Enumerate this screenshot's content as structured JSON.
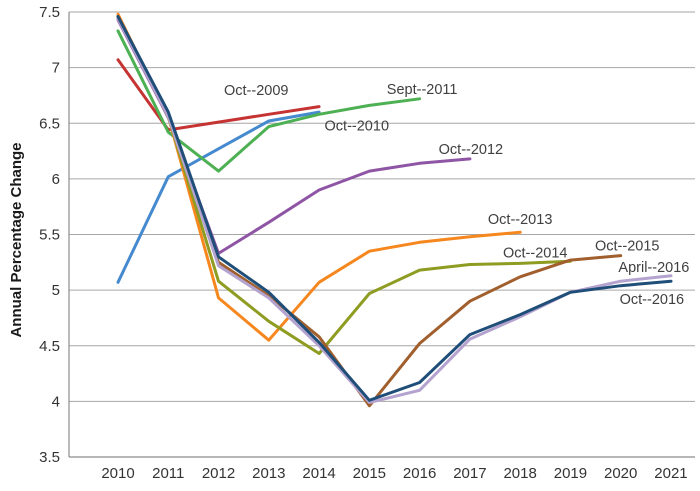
{
  "chart_data": {
    "type": "line",
    "title": "",
    "xlabel": "",
    "ylabel": "Annual Percentage Change",
    "ylim": [
      3.5,
      7.5
    ],
    "xlim": [
      2010,
      2021
    ],
    "grid": "horizontal",
    "legend_position": "none (inline annotations)",
    "gridline_color": "#A6A6A6",
    "axis_color": "#8C8C8C",
    "tick_label_color": "#333333",
    "annotation_color": "#404040",
    "y_ticks": [
      {
        "value": 3.5,
        "label": "3.5"
      },
      {
        "value": 4.0,
        "label": "4"
      },
      {
        "value": 4.5,
        "label": "4.5"
      },
      {
        "value": 5.0,
        "label": "5"
      },
      {
        "value": 5.5,
        "label": "5.5"
      },
      {
        "value": 6.0,
        "label": "6"
      },
      {
        "value": 6.5,
        "label": "6.5"
      },
      {
        "value": 7.0,
        "label": "7"
      },
      {
        "value": 7.5,
        "label": "7.5"
      }
    ],
    "x_ticks": [
      {
        "value": 2010,
        "label": "2010"
      },
      {
        "value": 2011,
        "label": "2011"
      },
      {
        "value": 2012,
        "label": "2012"
      },
      {
        "value": 2013,
        "label": "2013"
      },
      {
        "value": 2014,
        "label": "2014"
      },
      {
        "value": 2015,
        "label": "2015"
      },
      {
        "value": 2016,
        "label": "2016"
      },
      {
        "value": 2017,
        "label": "2017"
      },
      {
        "value": 2018,
        "label": "2018"
      },
      {
        "value": 2019,
        "label": "2019"
      },
      {
        "value": 2020,
        "label": "2020"
      },
      {
        "value": 2021,
        "label": "2021"
      }
    ],
    "series": [
      {
        "name": "Oct--2009",
        "color": "#C63333",
        "years": [
          2010,
          2011,
          2012,
          2013,
          2014
        ],
        "values": [
          7.07,
          6.44,
          6.51,
          6.58,
          6.65
        ]
      },
      {
        "name": "Oct--2010",
        "color": "#4589CF",
        "years": [
          2010,
          2011,
          2012,
          2013,
          2014
        ],
        "values": [
          5.07,
          6.02,
          6.27,
          6.52,
          6.6
        ]
      },
      {
        "name": "Sept--2011",
        "color": "#4DB052",
        "years": [
          2010,
          2011,
          2012,
          2013,
          2014,
          2015,
          2016
        ],
        "values": [
          7.33,
          6.42,
          6.07,
          6.47,
          6.58,
          6.66,
          6.72
        ]
      },
      {
        "name": "Oct--2012",
        "color": "#8F55A5",
        "years": [
          2010,
          2011,
          2012,
          2013,
          2014,
          2015,
          2016,
          2017
        ],
        "values": [
          7.43,
          6.55,
          5.33,
          5.61,
          5.9,
          6.07,
          6.14,
          6.18
        ]
      },
      {
        "name": "Oct--2013",
        "color": "#F6871F",
        "years": [
          2010,
          2011,
          2012,
          2013,
          2014,
          2015,
          2016,
          2017,
          2018
        ],
        "values": [
          7.48,
          6.56,
          4.93,
          4.55,
          5.07,
          5.35,
          5.43,
          5.48,
          5.52
        ]
      },
      {
        "name": "Oct--2014",
        "color": "#8E9C22",
        "years": [
          2010,
          2011,
          2012,
          2013,
          2014,
          2015,
          2016,
          2017,
          2018,
          2019
        ],
        "values": [
          7.45,
          6.56,
          5.08,
          4.72,
          4.43,
          4.97,
          5.18,
          5.23,
          5.24,
          5.26
        ]
      },
      {
        "name": "Oct--2015",
        "color": "#A05F2C",
        "years": [
          2010,
          2011,
          2012,
          2013,
          2014,
          2015,
          2016,
          2017,
          2018,
          2019,
          2020
        ],
        "values": [
          7.45,
          6.58,
          5.25,
          4.95,
          4.58,
          3.96,
          4.52,
          4.9,
          5.12,
          5.27,
          5.31
        ]
      },
      {
        "name": "April--2016",
        "color": "#B3A3CE",
        "years": [
          2010,
          2011,
          2012,
          2013,
          2014,
          2015,
          2016,
          2017,
          2018,
          2019,
          2020,
          2021
        ],
        "values": [
          7.44,
          6.56,
          5.22,
          4.93,
          4.5,
          3.99,
          4.1,
          4.56,
          4.76,
          4.98,
          5.08,
          5.13
        ]
      },
      {
        "name": "Oct--2016",
        "color": "#1F4E79",
        "years": [
          2010,
          2011,
          2012,
          2013,
          2014,
          2015,
          2016,
          2017,
          2018,
          2019,
          2020,
          2021
        ],
        "values": [
          7.46,
          6.6,
          5.3,
          4.98,
          4.53,
          4.01,
          4.17,
          4.6,
          4.78,
          4.98,
          5.04,
          5.08
        ]
      }
    ],
    "annotations": [
      {
        "label": "Oct--2009",
        "year": 2012.75,
        "value": 6.8
      },
      {
        "label": "Oct--2010",
        "year": 2014.75,
        "value": 6.48
      },
      {
        "label": "Sept--2011",
        "year": 2016.05,
        "value": 6.81
      },
      {
        "label": "Oct--2012",
        "year": 2017.02,
        "value": 6.27
      },
      {
        "label": "Oct--2013",
        "year": 2018.0,
        "value": 5.64
      },
      {
        "label": "Oct--2014",
        "year": 2018.3,
        "value": 5.34
      },
      {
        "label": "Oct--2015",
        "year": 2020.13,
        "value": 5.4
      },
      {
        "label": "April--2016",
        "year": 2020.66,
        "value": 5.21
      },
      {
        "label": "Oct--2016",
        "year": 2020.62,
        "value": 4.92
      }
    ]
  }
}
